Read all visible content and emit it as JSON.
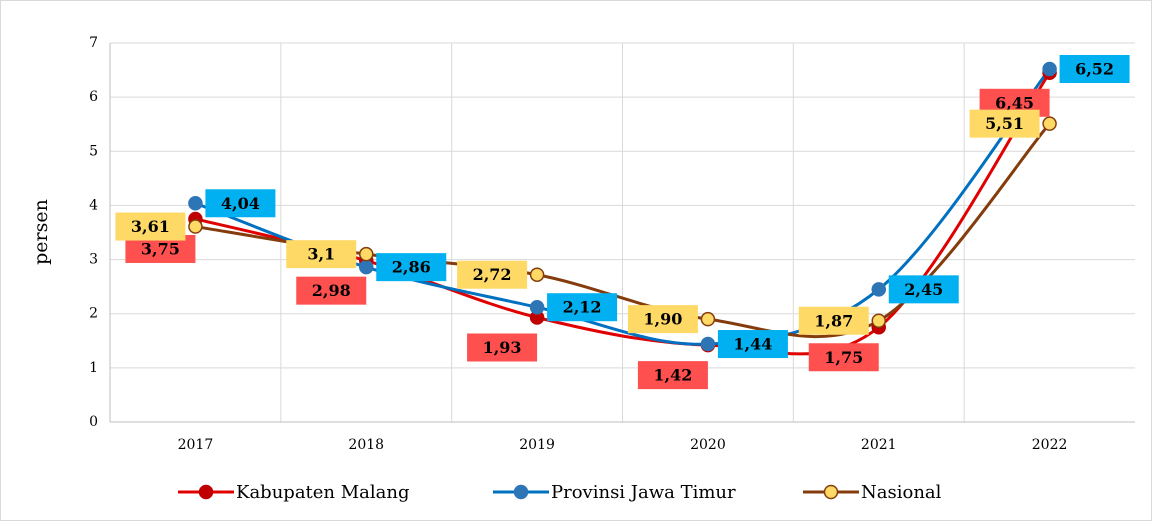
{
  "chart_data": {
    "type": "line",
    "ylabel": "persen",
    "categories": [
      "2017",
      "2018",
      "2019",
      "2020",
      "2021",
      "2022"
    ],
    "series": [
      {
        "name": "Kabupaten Malang",
        "color": "#e00000",
        "marker_color": "#c00000",
        "label_color": "#ff5050",
        "values": [
          3.75,
          2.98,
          1.93,
          1.42,
          1.75,
          6.45
        ],
        "value_labels": [
          "3,75",
          "2,98",
          "1,93",
          "1,42",
          "1,75",
          "6,45"
        ]
      },
      {
        "name": "Provinsi Jawa Timur",
        "color": "#0070c0",
        "marker_color": "#2e75b6",
        "label_color": "#00b0f0",
        "values": [
          4.04,
          2.86,
          2.12,
          1.44,
          2.45,
          6.52
        ],
        "value_labels": [
          "4,04",
          "2,86",
          "2,12",
          "1,44",
          "2,45",
          "6,52"
        ]
      },
      {
        "name": "Nasional",
        "color": "#843c0c",
        "marker_color": "#ffd966",
        "label_color": "#ffd966",
        "values": [
          3.61,
          3.1,
          2.72,
          1.9,
          1.87,
          5.51
        ],
        "value_labels": [
          "3,61",
          "3,1",
          "2,72",
          "1,90",
          "1,87",
          "5,51"
        ]
      }
    ],
    "ylim": [
      0,
      7
    ],
    "yticks": [
      0,
      1,
      2,
      3,
      4,
      5,
      6,
      7
    ],
    "grid": true,
    "legend": "bottom"
  }
}
